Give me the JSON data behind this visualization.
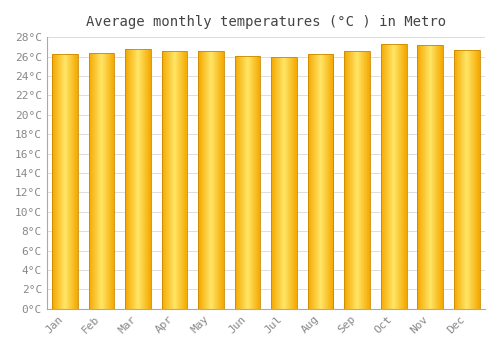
{
  "title": "Average monthly temperatures (°C ) in Metro",
  "months": [
    "Jan",
    "Feb",
    "Mar",
    "Apr",
    "May",
    "Jun",
    "Jul",
    "Aug",
    "Sep",
    "Oct",
    "Nov",
    "Dec"
  ],
  "values": [
    26.3,
    26.4,
    26.8,
    26.6,
    26.6,
    26.1,
    26.0,
    26.3,
    26.6,
    27.3,
    27.2,
    26.7
  ],
  "ylim": [
    0,
    28
  ],
  "yticks": [
    0,
    2,
    4,
    6,
    8,
    10,
    12,
    14,
    16,
    18,
    20,
    22,
    24,
    26,
    28
  ],
  "bar_color_center": "#FFE566",
  "bar_color_edge": "#F5A800",
  "bar_border_color": "#CC8800",
  "grid_color": "#dddddd",
  "bg_color": "#ffffff",
  "title_fontsize": 10,
  "tick_fontsize": 8,
  "title_font": "monospace",
  "tick_font": "monospace",
  "bar_width": 0.7
}
